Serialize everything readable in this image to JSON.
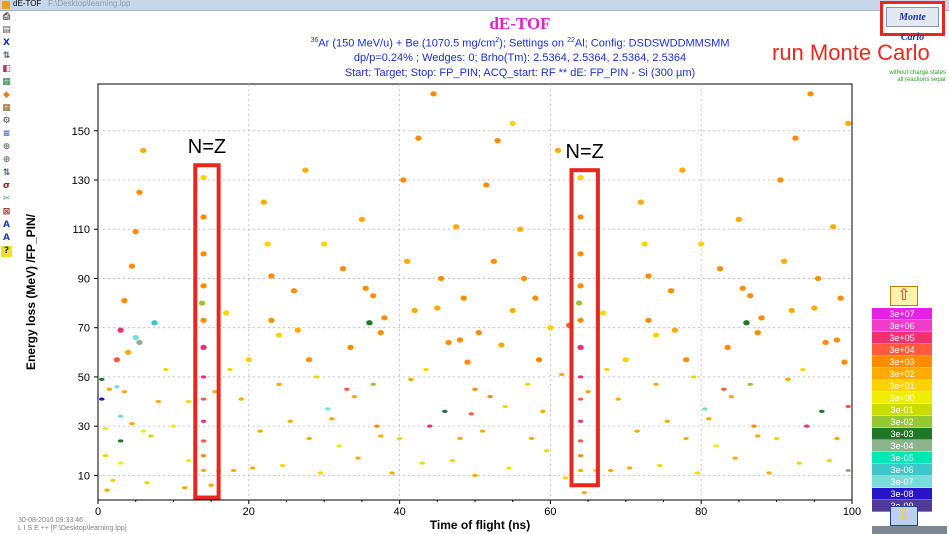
{
  "window": {
    "app_title": "dE-TOF",
    "doc_title": "F:\\Desktop\\learning.lpp"
  },
  "toolbar_icons": [
    "print-icon",
    "save-icon",
    "x-icon",
    "scale-icon",
    "palette-icon",
    "colormap-icon",
    "color-icon",
    "grid-icon",
    "settings-icon",
    "options-icon",
    "zoom-icon",
    "zoom-icon",
    "scale-icon",
    "sigma-icon",
    "cut-icon",
    "cross-icon",
    "text-icon",
    "text-icon",
    "help-icon"
  ],
  "monte_carlo_button": "Monte Carlo",
  "annotations": {
    "run_mc": "run Monte Carlo",
    "nz_left": "N=Z",
    "nz_right": "N=Z"
  },
  "mc_note": {
    "line1": "without charge states",
    "line2": "all reactions separ"
  },
  "footer": {
    "date": "30-08-2016  09:33:46",
    "path": "L I S E ++  [F:\\Desktop\\learning.lpp]"
  },
  "colors": {
    "title": "#e020c8",
    "subtitle": "#1a2fd0",
    "annotation": "#e8281e"
  },
  "chart_data": {
    "type": "scatter",
    "title": "dE-TOF",
    "subtitle_lines": [
      "36Ar (150 MeV/u) + Be (1070.5 mg/cm2);  Settings on 22Al;  Config: DSDSWDDMMSMM",
      "dp/p=0.24% ; Wedges: 0; Brho(Tm): 2.5364, 2.5364, 2.5364, 2.5364",
      "Start: Target;  Stop: FP_PIN;  ACQ_start: RF      ** dE: FP_PIN - Si (300 µm)"
    ],
    "xlabel": "Time of flight (ns)",
    "ylabel": "Energy loss (MeV) /FP_PIN/",
    "xlim": [
      0,
      100
    ],
    "ylim": [
      0,
      169
    ],
    "xticks": [
      0,
      20,
      40,
      60,
      80,
      100
    ],
    "yticks": [
      10,
      30,
      50,
      70,
      90,
      110,
      130,
      150
    ],
    "grid": true,
    "legend": {
      "position": "right",
      "entries": [
        {
          "label": "3e+07",
          "color": "#e620e6"
        },
        {
          "label": "3e+06",
          "color": "#f03cc8"
        },
        {
          "label": "3e+05",
          "color": "#f03070"
        },
        {
          "label": "3e+04",
          "color": "#ff5a3c"
        },
        {
          "label": "3e+03",
          "color": "#ff8c00"
        },
        {
          "label": "3e+02",
          "color": "#ffaa00"
        },
        {
          "label": "3e+01",
          "color": "#ffd200"
        },
        {
          "label": "3e+00",
          "color": "#eeee00"
        },
        {
          "label": "3e-01",
          "color": "#c8dc00"
        },
        {
          "label": "3e-02",
          "color": "#96c832"
        },
        {
          "label": "3e-03",
          "color": "#1e7828"
        },
        {
          "label": "3e-04",
          "color": "#8cb48c"
        },
        {
          "label": "3e-05",
          "color": "#00e6b4"
        },
        {
          "label": "3e-06",
          "color": "#3cc8c8"
        },
        {
          "label": "3e-07",
          "color": "#78dcdc"
        },
        {
          "label": "3e-08",
          "color": "#2814c8"
        },
        {
          "label": "3e-09",
          "color": "#503c96"
        }
      ]
    },
    "highlight_boxes": [
      {
        "label": "N=Z",
        "x_range": [
          12.9,
          16.0
        ],
        "y_range": [
          1,
          136
        ]
      },
      {
        "label": "N=Z",
        "x_range": [
          62.8,
          66.3
        ],
        "y_range": [
          6,
          134
        ]
      }
    ],
    "points": [
      {
        "x": 0.5,
        "y": 49,
        "c": "#1e7828"
      },
      {
        "x": 0.5,
        "y": 41,
        "c": "#2814c8"
      },
      {
        "x": 1.0,
        "y": 29,
        "c": "#eeee00"
      },
      {
        "x": 1.0,
        "y": 18,
        "c": "#ffd200"
      },
      {
        "x": 1.2,
        "y": 4,
        "c": "#ffaa00"
      },
      {
        "x": 1.5,
        "y": 45,
        "c": "#ffaa00"
      },
      {
        "x": 2.0,
        "y": 8,
        "c": "#ffd200"
      },
      {
        "x": 2.5,
        "y": 57,
        "c": "#ff5a3c"
      },
      {
        "x": 2.5,
        "y": 46,
        "c": "#78dcdc"
      },
      {
        "x": 3.0,
        "y": 69,
        "c": "#f03070"
      },
      {
        "x": 3.0,
        "y": 34,
        "c": "#78dcdc"
      },
      {
        "x": 3.0,
        "y": 24,
        "c": "#1e7828"
      },
      {
        "x": 3.0,
        "y": 15,
        "c": "#eeee00"
      },
      {
        "x": 3.5,
        "y": 81,
        "c": "#ff8c00"
      },
      {
        "x": 3.5,
        "y": 44,
        "c": "#ffaa00"
      },
      {
        "x": 4.0,
        "y": 60,
        "c": "#ffaa00"
      },
      {
        "x": 4.5,
        "y": 95,
        "c": "#ff8c00"
      },
      {
        "x": 4.5,
        "y": 31,
        "c": "#ffaa00"
      },
      {
        "x": 5.0,
        "y": 109,
        "c": "#ff8c00"
      },
      {
        "x": 5.0,
        "y": 66,
        "c": "#78dcdc"
      },
      {
        "x": 5.5,
        "y": 125,
        "c": "#ff8c00"
      },
      {
        "x": 5.5,
        "y": 64,
        "c": "#8cb48c"
      },
      {
        "x": 6.0,
        "y": 142,
        "c": "#ffaa00"
      },
      {
        "x": 6.0,
        "y": 28,
        "c": "#eeee00"
      },
      {
        "x": 6.5,
        "y": 7,
        "c": "#ffd200"
      },
      {
        "x": 7.0,
        "y": 26,
        "c": "#c8dc00"
      },
      {
        "x": 7.5,
        "y": 72,
        "c": "#3cc8c8"
      },
      {
        "x": 8.0,
        "y": 40,
        "c": "#ffaa00"
      },
      {
        "x": 9.0,
        "y": 53,
        "c": "#ffd200"
      },
      {
        "x": 10.0,
        "y": 30,
        "c": "#eeee00"
      },
      {
        "x": 11.5,
        "y": 5,
        "c": "#ffaa00"
      },
      {
        "x": 12.0,
        "y": 16,
        "c": "#eeee00"
      },
      {
        "x": 12.0,
        "y": 40,
        "c": "#ffd200"
      },
      {
        "x": 14.0,
        "y": 131,
        "c": "#ffd200"
      },
      {
        "x": 14.0,
        "y": 115,
        "c": "#ff8c00"
      },
      {
        "x": 14.0,
        "y": 100,
        "c": "#ff8c00"
      },
      {
        "x": 14.0,
        "y": 87,
        "c": "#ff8c00"
      },
      {
        "x": 13.8,
        "y": 80,
        "c": "#96c832"
      },
      {
        "x": 14.0,
        "y": 73,
        "c": "#ff8c00"
      },
      {
        "x": 14.0,
        "y": 62,
        "c": "#f03070"
      },
      {
        "x": 14.0,
        "y": 50,
        "c": "#f03070"
      },
      {
        "x": 14.0,
        "y": 41,
        "c": "#ff5a3c"
      },
      {
        "x": 14.0,
        "y": 32,
        "c": "#f03070"
      },
      {
        "x": 14.0,
        "y": 24,
        "c": "#ff5a3c"
      },
      {
        "x": 14.0,
        "y": 18,
        "c": "#ff8c00"
      },
      {
        "x": 14.0,
        "y": 12,
        "c": "#ffaa00"
      },
      {
        "x": 15.0,
        "y": 6,
        "c": "#ffaa00"
      },
      {
        "x": 15.5,
        "y": 44,
        "c": "#ffaa00"
      },
      {
        "x": 16.0,
        "y": 12,
        "c": "#ffd200"
      },
      {
        "x": 17.0,
        "y": 76,
        "c": "#ffd200"
      },
      {
        "x": 17.5,
        "y": 53,
        "c": "#ffd200"
      },
      {
        "x": 18.0,
        "y": 12,
        "c": "#ffaa00"
      },
      {
        "x": 19.0,
        "y": 41,
        "c": "#ffaa00"
      },
      {
        "x": 20.0,
        "y": 57,
        "c": "#ffd200"
      },
      {
        "x": 20.5,
        "y": 13,
        "c": "#ffaa00"
      },
      {
        "x": 21.5,
        "y": 28,
        "c": "#ffaa00"
      },
      {
        "x": 22.0,
        "y": 121,
        "c": "#ffaa00"
      },
      {
        "x": 22.5,
        "y": 104,
        "c": "#ffd200"
      },
      {
        "x": 23.0,
        "y": 73,
        "c": "#ff8c00"
      },
      {
        "x": 23.0,
        "y": 91,
        "c": "#ff8c00"
      },
      {
        "x": 24.0,
        "y": 67,
        "c": "#ffd200"
      },
      {
        "x": 24.0,
        "y": 47,
        "c": "#ffaa00"
      },
      {
        "x": 24.5,
        "y": 14,
        "c": "#ffd200"
      },
      {
        "x": 25.5,
        "y": 32,
        "c": "#ffaa00"
      },
      {
        "x": 26.0,
        "y": 85,
        "c": "#ff8c00"
      },
      {
        "x": 26.5,
        "y": 69,
        "c": "#ffaa00"
      },
      {
        "x": 27.5,
        "y": 134,
        "c": "#ffaa00"
      },
      {
        "x": 28.0,
        "y": 57,
        "c": "#ff8c00"
      },
      {
        "x": 28.0,
        "y": 25,
        "c": "#ffaa00"
      },
      {
        "x": 29.0,
        "y": 50,
        "c": "#ffd200"
      },
      {
        "x": 29.5,
        "y": 11,
        "c": "#ffd200"
      },
      {
        "x": 30.0,
        "y": 104,
        "c": "#ffd200"
      },
      {
        "x": 30.5,
        "y": 37,
        "c": "#78dcdc"
      },
      {
        "x": 31.0,
        "y": 33,
        "c": "#ffaa00"
      },
      {
        "x": 32.0,
        "y": 22,
        "c": "#eeee00"
      },
      {
        "x": 32.5,
        "y": 94,
        "c": "#ff8c00"
      },
      {
        "x": 33.0,
        "y": 45,
        "c": "#ff5a3c"
      },
      {
        "x": 33.5,
        "y": 62,
        "c": "#ff8c00"
      },
      {
        "x": 34.0,
        "y": 42,
        "c": "#ffaa00"
      },
      {
        "x": 34.5,
        "y": 17,
        "c": "#ffaa00"
      },
      {
        "x": 35.0,
        "y": 114,
        "c": "#ffaa00"
      },
      {
        "x": 35.5,
        "y": 86,
        "c": "#ff8c00"
      },
      {
        "x": 36.0,
        "y": 72,
        "c": "#1e7828"
      },
      {
        "x": 36.5,
        "y": 47,
        "c": "#96c832"
      },
      {
        "x": 36.5,
        "y": 83,
        "c": "#ff8c00"
      },
      {
        "x": 37.0,
        "y": 30,
        "c": "#ff8c00"
      },
      {
        "x": 37.5,
        "y": 68,
        "c": "#ff8c00"
      },
      {
        "x": 37.5,
        "y": 26,
        "c": "#ffaa00"
      },
      {
        "x": 38.0,
        "y": 74,
        "c": "#ff8c00"
      },
      {
        "x": 39.0,
        "y": 11,
        "c": "#ffaa00"
      },
      {
        "x": 40.0,
        "y": 25,
        "c": "#ffd200"
      },
      {
        "x": 40.5,
        "y": 130,
        "c": "#ff8c00"
      },
      {
        "x": 41.0,
        "y": 97,
        "c": "#ffaa00"
      },
      {
        "x": 41.5,
        "y": 49,
        "c": "#ffaa00"
      },
      {
        "x": 42.0,
        "y": 77,
        "c": "#ffaa00"
      },
      {
        "x": 42.5,
        "y": 147,
        "c": "#ff8c00"
      },
      {
        "x": 43.0,
        "y": 15,
        "c": "#ffd200"
      },
      {
        "x": 43.5,
        "y": 53,
        "c": "#ffd200"
      },
      {
        "x": 44.0,
        "y": 30,
        "c": "#f03070"
      },
      {
        "x": 44.5,
        "y": 165,
        "c": "#ff8c00"
      },
      {
        "x": 45.0,
        "y": 78,
        "c": "#ffaa00"
      },
      {
        "x": 45.5,
        "y": 90,
        "c": "#ff8c00"
      },
      {
        "x": 46.0,
        "y": 36,
        "c": "#1e7828"
      },
      {
        "x": 46.5,
        "y": 64,
        "c": "#ff8c00"
      },
      {
        "x": 47.0,
        "y": 16,
        "c": "#ffd200"
      },
      {
        "x": 47.5,
        "y": 111,
        "c": "#ffaa00"
      },
      {
        "x": 48.0,
        "y": 65,
        "c": "#ff8c00"
      },
      {
        "x": 48.0,
        "y": 25,
        "c": "#ffaa00"
      },
      {
        "x": 48.5,
        "y": 82,
        "c": "#ff8c00"
      },
      {
        "x": 49.0,
        "y": 56,
        "c": "#ff8c00"
      },
      {
        "x": 49.5,
        "y": 35,
        "c": "#ff5a3c"
      },
      {
        "x": 50.0,
        "y": 10,
        "c": "#ffaa00"
      },
      {
        "x": 50.0,
        "y": 45,
        "c": "#ff8c00"
      },
      {
        "x": 50.5,
        "y": 68,
        "c": "#ff8c00"
      },
      {
        "x": 51.0,
        "y": 28,
        "c": "#ffaa00"
      },
      {
        "x": 51.5,
        "y": 128,
        "c": "#ff8c00"
      },
      {
        "x": 52.0,
        "y": 42,
        "c": "#ff8c00"
      },
      {
        "x": 52.5,
        "y": 97,
        "c": "#ff8c00"
      },
      {
        "x": 53.0,
        "y": 146,
        "c": "#ff8c00"
      },
      {
        "x": 53.5,
        "y": 63,
        "c": "#ffaa00"
      },
      {
        "x": 54.0,
        "y": 38,
        "c": "#ffd200"
      },
      {
        "x": 54.5,
        "y": 13,
        "c": "#eeee00"
      },
      {
        "x": 55.0,
        "y": 153,
        "c": "#ffd200"
      },
      {
        "x": 55.0,
        "y": 77,
        "c": "#ffaa00"
      },
      {
        "x": 56.0,
        "y": 110,
        "c": "#ffaa00"
      },
      {
        "x": 56.5,
        "y": 90,
        "c": "#ff8c00"
      },
      {
        "x": 57.0,
        "y": 47,
        "c": "#ffd200"
      },
      {
        "x": 57.5,
        "y": 25,
        "c": "#ffaa00"
      },
      {
        "x": 58.0,
        "y": 82,
        "c": "#ff8c00"
      },
      {
        "x": 58.5,
        "y": 57,
        "c": "#ff8c00"
      },
      {
        "x": 59.0,
        "y": 36,
        "c": "#ffaa00"
      },
      {
        "x": 59.5,
        "y": 20,
        "c": "#ffd200"
      },
      {
        "x": 60.0,
        "y": 70,
        "c": "#ffd200"
      },
      {
        "x": 61.0,
        "y": 142,
        "c": "#ffaa00"
      },
      {
        "x": 61.5,
        "y": 51,
        "c": "#ffaa00"
      },
      {
        "x": 62.0,
        "y": 9,
        "c": "#ffd200"
      },
      {
        "x": 62.5,
        "y": 71,
        "c": "#ff5a3c"
      },
      {
        "x": 64.0,
        "y": 131,
        "c": "#ffd200"
      },
      {
        "x": 64.0,
        "y": 115,
        "c": "#ff8c00"
      },
      {
        "x": 64.0,
        "y": 100,
        "c": "#ff8c00"
      },
      {
        "x": 64.0,
        "y": 87,
        "c": "#ff8c00"
      },
      {
        "x": 63.8,
        "y": 80,
        "c": "#96c832"
      },
      {
        "x": 64.0,
        "y": 73,
        "c": "#ff8c00"
      },
      {
        "x": 64.0,
        "y": 62,
        "c": "#f03070"
      },
      {
        "x": 64.0,
        "y": 50,
        "c": "#f03070"
      },
      {
        "x": 64.0,
        "y": 41,
        "c": "#ff5a3c"
      },
      {
        "x": 64.0,
        "y": 32,
        "c": "#f03070"
      },
      {
        "x": 64.0,
        "y": 24,
        "c": "#ff5a3c"
      },
      {
        "x": 64.0,
        "y": 18,
        "c": "#ff8c00"
      },
      {
        "x": 64.0,
        "y": 12,
        "c": "#ffaa00"
      },
      {
        "x": 64.5,
        "y": 3,
        "c": "#ffaa00"
      },
      {
        "x": 65.0,
        "y": 44,
        "c": "#ffaa00"
      },
      {
        "x": 66.0,
        "y": 12,
        "c": "#ffd200"
      },
      {
        "x": 67.0,
        "y": 76,
        "c": "#ffd200"
      },
      {
        "x": 67.5,
        "y": 53,
        "c": "#ffd200"
      },
      {
        "x": 68.0,
        "y": 12,
        "c": "#ffaa00"
      },
      {
        "x": 69.0,
        "y": 41,
        "c": "#ffaa00"
      },
      {
        "x": 70.0,
        "y": 57,
        "c": "#ffd200"
      },
      {
        "x": 70.5,
        "y": 13,
        "c": "#ffaa00"
      },
      {
        "x": 71.5,
        "y": 28,
        "c": "#ffaa00"
      },
      {
        "x": 72.0,
        "y": 121,
        "c": "#ffaa00"
      },
      {
        "x": 72.5,
        "y": 104,
        "c": "#ffd200"
      },
      {
        "x": 73.0,
        "y": 73,
        "c": "#ff8c00"
      },
      {
        "x": 73.0,
        "y": 91,
        "c": "#ff8c00"
      },
      {
        "x": 74.0,
        "y": 67,
        "c": "#ffd200"
      },
      {
        "x": 74.0,
        "y": 47,
        "c": "#ffaa00"
      },
      {
        "x": 74.5,
        "y": 14,
        "c": "#ffd200"
      },
      {
        "x": 75.5,
        "y": 32,
        "c": "#ffaa00"
      },
      {
        "x": 76.0,
        "y": 85,
        "c": "#ff8c00"
      },
      {
        "x": 76.5,
        "y": 69,
        "c": "#ffaa00"
      },
      {
        "x": 77.5,
        "y": 134,
        "c": "#ffaa00"
      },
      {
        "x": 78.0,
        "y": 57,
        "c": "#ff8c00"
      },
      {
        "x": 78.0,
        "y": 25,
        "c": "#ffaa00"
      },
      {
        "x": 79.0,
        "y": 50,
        "c": "#ffd200"
      },
      {
        "x": 79.5,
        "y": 11,
        "c": "#ffd200"
      },
      {
        "x": 80.0,
        "y": 104,
        "c": "#ffd200"
      },
      {
        "x": 80.5,
        "y": 37,
        "c": "#78dcdc"
      },
      {
        "x": 81.0,
        "y": 33,
        "c": "#ffaa00"
      },
      {
        "x": 82.0,
        "y": 22,
        "c": "#eeee00"
      },
      {
        "x": 82.5,
        "y": 94,
        "c": "#ff8c00"
      },
      {
        "x": 83.0,
        "y": 45,
        "c": "#ff5a3c"
      },
      {
        "x": 83.5,
        "y": 62,
        "c": "#ff8c00"
      },
      {
        "x": 84.0,
        "y": 42,
        "c": "#ffaa00"
      },
      {
        "x": 84.5,
        "y": 17,
        "c": "#ffaa00"
      },
      {
        "x": 85.0,
        "y": 114,
        "c": "#ffaa00"
      },
      {
        "x": 85.5,
        "y": 86,
        "c": "#ff8c00"
      },
      {
        "x": 86.0,
        "y": 72,
        "c": "#1e7828"
      },
      {
        "x": 86.5,
        "y": 47,
        "c": "#96c832"
      },
      {
        "x": 86.5,
        "y": 83,
        "c": "#ff8c00"
      },
      {
        "x": 87.0,
        "y": 30,
        "c": "#ff8c00"
      },
      {
        "x": 87.5,
        "y": 68,
        "c": "#ff8c00"
      },
      {
        "x": 87.5,
        "y": 26,
        "c": "#ffaa00"
      },
      {
        "x": 88.0,
        "y": 74,
        "c": "#ff8c00"
      },
      {
        "x": 89.0,
        "y": 11,
        "c": "#ffaa00"
      },
      {
        "x": 90.0,
        "y": 25,
        "c": "#ffd200"
      },
      {
        "x": 90.5,
        "y": 130,
        "c": "#ff8c00"
      },
      {
        "x": 91.0,
        "y": 97,
        "c": "#ffaa00"
      },
      {
        "x": 91.5,
        "y": 49,
        "c": "#ffaa00"
      },
      {
        "x": 92.0,
        "y": 77,
        "c": "#ffaa00"
      },
      {
        "x": 92.5,
        "y": 147,
        "c": "#ff8c00"
      },
      {
        "x": 93.0,
        "y": 15,
        "c": "#ffd200"
      },
      {
        "x": 93.5,
        "y": 53,
        "c": "#ffd200"
      },
      {
        "x": 94.0,
        "y": 30,
        "c": "#f03070"
      },
      {
        "x": 94.5,
        "y": 165,
        "c": "#ff8c00"
      },
      {
        "x": 95.0,
        "y": 78,
        "c": "#ffaa00"
      },
      {
        "x": 95.5,
        "y": 90,
        "c": "#ff8c00"
      },
      {
        "x": 96.0,
        "y": 36,
        "c": "#1e7828"
      },
      {
        "x": 96.5,
        "y": 64,
        "c": "#ff8c00"
      },
      {
        "x": 97.0,
        "y": 16,
        "c": "#ffd200"
      },
      {
        "x": 97.5,
        "y": 111,
        "c": "#ffaa00"
      },
      {
        "x": 98.0,
        "y": 65,
        "c": "#ff8c00"
      },
      {
        "x": 98.0,
        "y": 25,
        "c": "#ffaa00"
      },
      {
        "x": 98.5,
        "y": 82,
        "c": "#ff8c00"
      },
      {
        "x": 99.0,
        "y": 56,
        "c": "#ff8c00"
      },
      {
        "x": 99.5,
        "y": 153,
        "c": "#ffaa00"
      },
      {
        "x": 99.5,
        "y": 38,
        "c": "#ff5a3c"
      },
      {
        "x": 99.5,
        "y": 12,
        "c": "#8cb48c"
      }
    ]
  }
}
